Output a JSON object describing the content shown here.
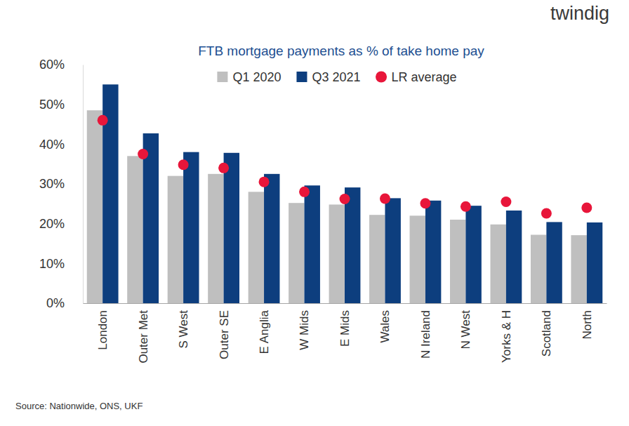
{
  "chart_data": {
    "type": "bar",
    "title": "FTB mortgage payments as % of take home pay",
    "categories": [
      "London",
      "Outer Met",
      "S West",
      "Outer SE",
      "E Anglia",
      "W Mids",
      "E Mids",
      "Wales",
      "N Ireland",
      "N West",
      "Yorks & H",
      "Scotland",
      "North"
    ],
    "series": [
      {
        "name": "Q1 2020",
        "type": "bar",
        "color": "#bfbfbf",
        "values": [
          48.5,
          37.0,
          32.0,
          32.5,
          28.0,
          25.2,
          24.8,
          22.2,
          22.0,
          21.0,
          19.8,
          17.2,
          17.1
        ]
      },
      {
        "name": "Q3 2021",
        "type": "bar",
        "color": "#0d3e7e",
        "values": [
          55.0,
          42.7,
          38.0,
          37.8,
          32.5,
          29.6,
          29.1,
          26.4,
          25.8,
          24.5,
          23.3,
          20.4,
          20.3
        ]
      },
      {
        "name": "LR average",
        "type": "scatter",
        "marker": "circle",
        "color": "#e8163a",
        "values": [
          46.0,
          37.5,
          34.8,
          34.0,
          30.5,
          28.0,
          26.2,
          26.3,
          25.1,
          24.3,
          25.5,
          22.6,
          24.0
        ]
      }
    ],
    "ylim": [
      0,
      60
    ],
    "yticks": [
      {
        "value": 0,
        "label": "0%"
      },
      {
        "value": 10,
        "label": "10%"
      },
      {
        "value": 20,
        "label": "20%"
      },
      {
        "value": 30,
        "label": "30%"
      },
      {
        "value": 40,
        "label": "40%"
      },
      {
        "value": 50,
        "label": "50%"
      },
      {
        "value": 60,
        "label": "60%"
      }
    ],
    "grid": false,
    "legend": "top",
    "annotations": [
      "twindig",
      "Source: Nationwide, ONS, UKF"
    ]
  }
}
